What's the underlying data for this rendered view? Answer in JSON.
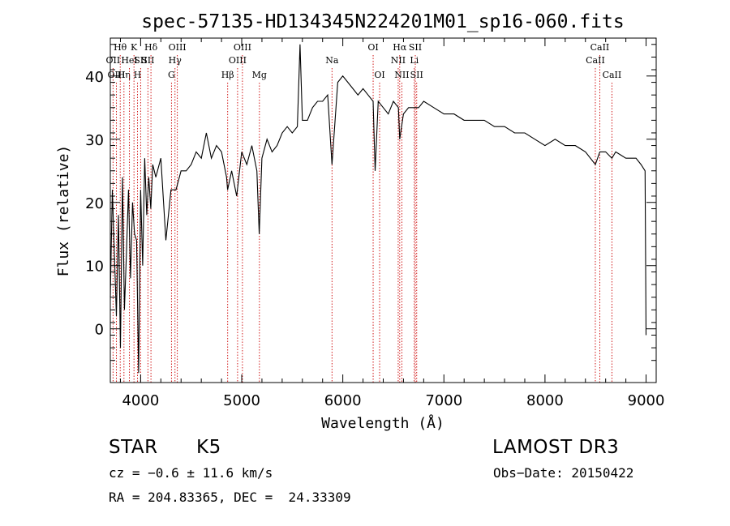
{
  "chart_data": {
    "type": "line",
    "title": "spec-57135-HD134345N224201M01_sp16-060.fits",
    "xlabel": "Wavelength (Å)",
    "ylabel": "Flux (relative)",
    "xlim": [
      3700,
      9100
    ],
    "ylim": [
      -8.5,
      46
    ],
    "x_ticks": [
      4000,
      5000,
      6000,
      7000,
      8000,
      9000
    ],
    "y_ticks": [
      0,
      10,
      20,
      30,
      40
    ],
    "grid": false,
    "series": [
      {
        "name": "spectrum",
        "x": [
          3700,
          3720,
          3740,
          3760,
          3780,
          3800,
          3820,
          3840,
          3860,
          3880,
          3900,
          3920,
          3940,
          3960,
          3980,
          4000,
          4020,
          4040,
          4060,
          4080,
          4100,
          4120,
          4150,
          4200,
          4250,
          4300,
          4350,
          4400,
          4450,
          4500,
          4550,
          4600,
          4650,
          4700,
          4750,
          4800,
          4850,
          4860,
          4900,
          4950,
          5000,
          5050,
          5100,
          5150,
          5173,
          5200,
          5250,
          5300,
          5350,
          5400,
          5450,
          5500,
          5550,
          5577,
          5600,
          5650,
          5700,
          5750,
          5800,
          5850,
          5893,
          5950,
          6000,
          6050,
          6100,
          6150,
          6200,
          6250,
          6300,
          6320,
          6350,
          6400,
          6450,
          6500,
          6550,
          6563,
          6600,
          6650,
          6700,
          6750,
          6800,
          6900,
          7000,
          7100,
          7200,
          7300,
          7400,
          7500,
          7600,
          7700,
          7800,
          7900,
          8000,
          8100,
          8200,
          8300,
          8400,
          8498,
          8542,
          8600,
          8662,
          8700,
          8800,
          8900,
          8950,
          8990,
          9000
        ],
        "y": [
          5,
          22,
          12,
          2,
          18,
          -3,
          24,
          3,
          12,
          22,
          8,
          20,
          15,
          14,
          -7,
          22,
          10,
          27,
          18,
          24,
          19,
          26,
          24,
          27,
          14,
          22,
          22,
          25,
          25,
          26,
          28,
          27,
          31,
          27,
          29,
          28,
          24,
          22,
          25,
          21,
          28,
          26,
          29,
          25,
          15,
          27,
          30,
          28,
          29,
          31,
          32,
          31,
          32,
          45,
          33,
          33,
          35,
          36,
          36,
          37,
          26,
          39,
          40,
          39,
          38,
          37,
          38,
          37,
          36,
          25,
          36,
          35,
          34,
          36,
          35,
          30,
          34,
          35,
          35,
          35,
          36,
          35,
          34,
          34,
          33,
          33,
          33,
          32,
          32,
          31,
          31,
          30,
          29,
          30,
          29,
          29,
          28,
          26,
          28,
          28,
          27,
          28,
          27,
          27,
          26,
          25,
          -1
        ]
      }
    ],
    "line_markers": [
      {
        "label": "Hθ",
        "x": 3798,
        "row": 1
      },
      {
        "label": "OII",
        "x": 3727,
        "row": 2
      },
      {
        "label": "OIII",
        "x": 3760,
        "row": 3
      },
      {
        "label": "Hη",
        "x": 3835,
        "row": 3
      },
      {
        "label": "HeI",
        "x": 3889,
        "row": 2
      },
      {
        "label": "K",
        "x": 3934,
        "row": 1
      },
      {
        "label": "H",
        "x": 3969,
        "row": 3
      },
      {
        "label": "SII",
        "x": 4000,
        "row": 2
      },
      {
        "label": "Hδ",
        "x": 4102,
        "row": 1
      },
      {
        "label": "SII",
        "x": 4072,
        "row": 2
      },
      {
        "label": "OIII",
        "x": 4363,
        "row": 1
      },
      {
        "label": "Hγ",
        "x": 4340,
        "row": 2
      },
      {
        "label": "G",
        "x": 4305,
        "row": 3
      },
      {
        "label": "Hβ",
        "x": 4861,
        "row": 3
      },
      {
        "label": "OIII",
        "x": 5007,
        "row": 1
      },
      {
        "label": "OIII",
        "x": 4959,
        "row": 2
      },
      {
        "label": "Mg",
        "x": 5175,
        "row": 3
      },
      {
        "label": "Na",
        "x": 5893,
        "row": 2
      },
      {
        "label": "OI",
        "x": 6300,
        "row": 1
      },
      {
        "label": "OI",
        "x": 6364,
        "row": 3
      },
      {
        "label": "Hα",
        "x": 6563,
        "row": 1
      },
      {
        "label": "NII",
        "x": 6548,
        "row": 2
      },
      {
        "label": "NII",
        "x": 6584,
        "row": 3
      },
      {
        "label": "SII",
        "x": 6717,
        "row": 1
      },
      {
        "label": "Li",
        "x": 6707,
        "row": 2
      },
      {
        "label": "SII",
        "x": 6731,
        "row": 3
      },
      {
        "label": "CaII",
        "x": 8542,
        "row": 1
      },
      {
        "label": "CaII",
        "x": 8498,
        "row": 2
      },
      {
        "label": "CaII",
        "x": 8662,
        "row": 3
      }
    ]
  },
  "info": {
    "class": "STAR",
    "subclass": "K5",
    "survey": "LAMOST DR3",
    "cz": "cz = −0.6 ± 11.6 km/s",
    "obs_date": "Obs−Date: 20150422",
    "coords": "RA = 204.83365, DEC =  24.33309"
  }
}
